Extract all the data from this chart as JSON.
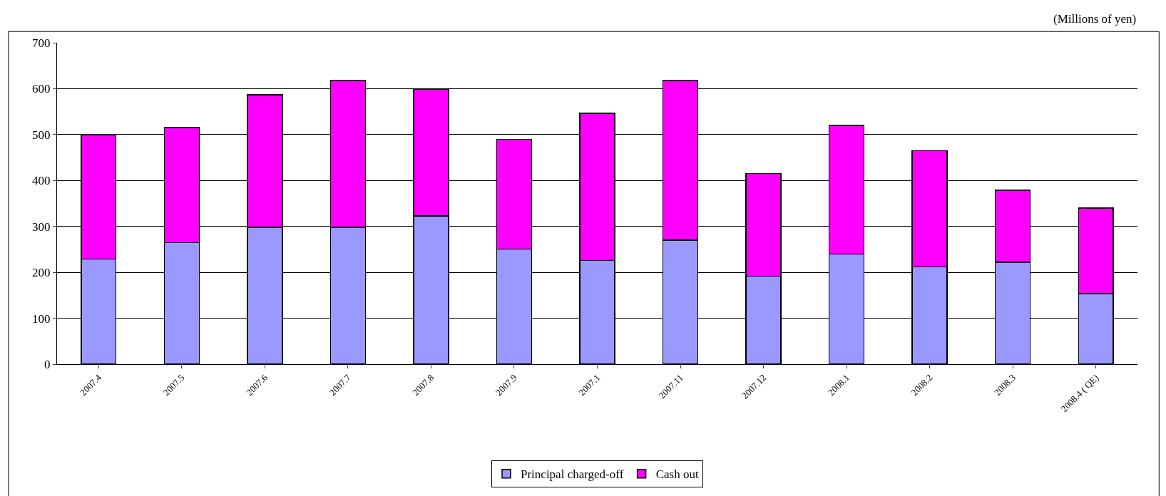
{
  "chart_data": {
    "type": "bar",
    "stacked": true,
    "subtitle": "(Millions of yen)",
    "categories": [
      "2007.4",
      "2007.5",
      "2007.6",
      "2007.7",
      "2007.8",
      "2007.9",
      "2007.1",
      "2007.11",
      "2007.12",
      "2008.1",
      "2008.2",
      "2008.3",
      "2008.4 ( QE)"
    ],
    "series": [
      {
        "name": "Principal charged-off",
        "color": "#9999ff",
        "values": [
          229,
          265,
          298,
          298,
          323,
          251,
          226,
          270,
          192,
          240,
          212,
          222,
          154
        ]
      },
      {
        "name": "Cash out",
        "color": "#ff00ff",
        "values": [
          271,
          250,
          289,
          320,
          275,
          239,
          320,
          348,
          223,
          280,
          253,
          157,
          186
        ]
      }
    ],
    "ylim": [
      0,
      700
    ],
    "yticks": [
      0,
      100,
      200,
      300,
      400,
      500,
      600,
      700
    ],
    "grid": "y",
    "legend": "bottom"
  }
}
